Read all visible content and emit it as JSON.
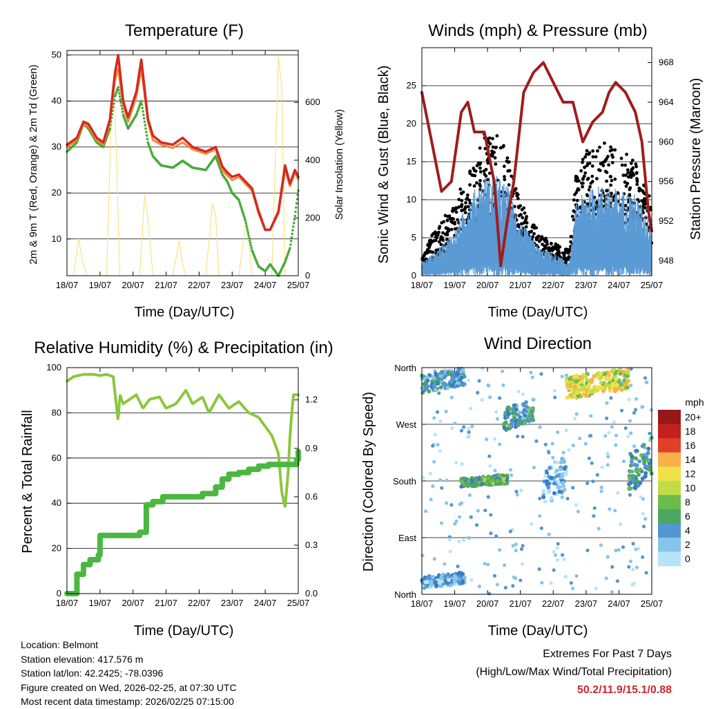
{
  "panels": {
    "temperature": {
      "title": "Temperature (F)",
      "ylabel_left": "2m & 9m T (Red, Orange) & 2m Td (Green)",
      "ylabel_right": "Solar Insolation (Yellow)",
      "xlabel": "Time (Day/UTC)"
    },
    "winds": {
      "title": "Winds (mph) & Pressure (mb)",
      "ylabel_left": "Sonic Wind & Gust (Blue, Black)",
      "ylabel_right": "Station Pressure (Maroon)",
      "xlabel": "Time (Day/UTC)"
    },
    "humidity": {
      "title": "Relative Humidity (%) & Precipitation (in)",
      "ylabel_left": "Percent & Total Rainfall",
      "xlabel": "Time (Day/UTC)"
    },
    "direction": {
      "title": "Wind Direction",
      "ylabel_left": "Direction (Colored By Speed)",
      "xlabel": "Time (Day/UTC)",
      "legend_title": "mph",
      "legend_labels": [
        "20+",
        "18",
        "16",
        "14",
        "12",
        "10",
        "8",
        "6",
        "4",
        "2",
        "0"
      ]
    }
  },
  "info": {
    "location": "Location: Belmont",
    "elevation": "Station elevation: 417.576 m",
    "latlon": "Station lat/lon: 42.2425; -78.0396",
    "created": "Figure created on Wed, 2026-02-25, at 07:30 UTC",
    "recent": "Most recent data timestamp: 2026/02/25 07:15:00"
  },
  "extremes": {
    "line1": "Extremes For Past 7 Days",
    "line2": "(High/Low/Max Wind/Total Precipitation)",
    "values": "50.2/11.9/15.1/0.88"
  },
  "colors": {
    "temp_2m": "#d42a20",
    "temp_9m": "#f08a38",
    "dewpoint": "#4aaa3c",
    "solar": "#f8e06a",
    "wind": "#5b9bd5",
    "gust": "#000000",
    "pressure": "#a01c1c",
    "rh": "#8cc63e",
    "precip": "#4ab840",
    "scale": [
      "#b8e4f8",
      "#86c4ec",
      "#5296d2",
      "#3c7cc0",
      "#4aa860",
      "#6cbc4c",
      "#c2dc48",
      "#f2e048",
      "#f8b04a",
      "#f07030",
      "#e04028",
      "#c42020",
      "#981818"
    ]
  },
  "chart_data": [
    {
      "type": "line",
      "title": "Temperature (F)",
      "xlabel": "Time (Day/UTC)",
      "ylabel": "2m & 9m T (Red, Orange) & 2m Td (Green)",
      "y2label": "Solar Insolation (Yellow)",
      "x_ticks": [
        "18/07",
        "19/07",
        "20/07",
        "21/07",
        "22/07",
        "23/07",
        "24/07",
        "25/07"
      ],
      "x_range": [
        0,
        7
      ],
      "ylim": [
        2,
        51
      ],
      "y_ticks": [
        10,
        20,
        30,
        40,
        50
      ],
      "y2lim": [
        0,
        780
      ],
      "y2_ticks": [
        0,
        200,
        400,
        600
      ],
      "series": [
        {
          "name": "2m T",
          "color": "#d42a20",
          "x": [
            0,
            0.3,
            0.5,
            0.65,
            0.9,
            1.1,
            1.3,
            1.45,
            1.55,
            1.7,
            1.85,
            2.1,
            2.25,
            2.45,
            2.6,
            2.85,
            3.2,
            3.5,
            3.8,
            4.2,
            4.5,
            4.7,
            4.85,
            5,
            5.2,
            5.4,
            5.6,
            5.8,
            6,
            6.15,
            6.4,
            6.6,
            6.75,
            6.9,
            7
          ],
          "y": [
            30.5,
            32,
            35.5,
            35,
            32,
            31,
            36,
            46,
            50,
            40,
            36.5,
            42,
            49,
            36,
            32.5,
            31,
            30.5,
            32,
            30,
            29,
            30,
            25.8,
            24.5,
            23.5,
            24,
            22.5,
            21,
            16,
            12,
            12,
            16,
            26,
            22,
            25,
            23.5
          ]
        },
        {
          "name": "9m T",
          "color": "#f08a38",
          "x": [
            0,
            0.3,
            0.5,
            0.65,
            0.9,
            1.1,
            1.3,
            1.45,
            1.55,
            1.7,
            1.85,
            2.1,
            2.25,
            2.45,
            2.6,
            2.85,
            3.2,
            3.5,
            3.8,
            4.2,
            4.5,
            4.7,
            4.85,
            5,
            5.2,
            5.4,
            5.6,
            5.8,
            6,
            6.15,
            6.4,
            6.6,
            6.75,
            6.9,
            7
          ],
          "y": [
            30,
            31.5,
            35,
            34.5,
            31.5,
            30.5,
            35.5,
            44.5,
            47,
            39,
            35.5,
            41,
            47,
            35.5,
            31.5,
            30.5,
            29.8,
            31,
            29.5,
            28.5,
            29.5,
            25,
            23.8,
            22.8,
            23.5,
            22,
            20.5,
            15.5,
            11.9,
            12,
            15.5,
            25,
            21.5,
            24.5,
            23
          ]
        },
        {
          "name": "2m Td",
          "color": "#4aaa3c",
          "x": [
            0,
            0.3,
            0.5,
            0.65,
            0.9,
            1.1,
            1.3,
            1.45,
            1.55,
            1.7,
            1.85,
            2.1,
            2.25,
            2.45,
            2.6,
            2.85,
            3.2,
            3.5,
            3.8,
            4.2,
            4.5,
            4.7,
            4.85,
            5,
            5.2,
            5.4,
            5.6,
            5.8,
            6,
            6.15,
            6.4,
            6.6,
            6.75,
            6.9,
            7
          ],
          "y": [
            29,
            31,
            35,
            34,
            31,
            30,
            34,
            41,
            43,
            37,
            34,
            37,
            40,
            31,
            28,
            26,
            25.5,
            27,
            25.5,
            25,
            28,
            24,
            22.5,
            20,
            18.5,
            14,
            7.5,
            4,
            3,
            4.5,
            2,
            5,
            8,
            15,
            20.5
          ]
        },
        {
          "name": "Solar Insolation",
          "color": "#f8e06a",
          "axis": "y2",
          "x": [
            0,
            0.2,
            0.35,
            0.45,
            0.6,
            0.8,
            1,
            1.2,
            1.35,
            1.45,
            1.6,
            1.8,
            2,
            2.2,
            2.35,
            2.45,
            2.6,
            2.8,
            3,
            3.2,
            3.4,
            3.5,
            3.6,
            3.8,
            4,
            4.2,
            4.4,
            4.5,
            4.6,
            4.8,
            5,
            5.2,
            5.4,
            5.5,
            5.6,
            5.8,
            6,
            6.2,
            6.4,
            6.5,
            6.6,
            6.8,
            7
          ],
          "y": [
            0,
            0,
            130,
            60,
            0,
            0,
            0,
            0,
            580,
            600,
            0,
            0,
            0,
            0,
            280,
            200,
            0,
            0,
            0,
            0,
            120,
            40,
            0,
            0,
            0,
            0,
            250,
            210,
            0,
            0,
            0,
            0,
            180,
            120,
            0,
            0,
            0,
            0,
            760,
            650,
            0,
            0,
            0
          ]
        }
      ]
    },
    {
      "type": "scatter",
      "title": "Winds (mph) & Pressure (mb)",
      "xlabel": "Time (Day/UTC)",
      "ylabel": "Sonic Wind & Gust (Blue, Black)",
      "y2label": "Station Pressure (Maroon)",
      "x_ticks": [
        "18/07",
        "19/07",
        "20/07",
        "21/07",
        "22/07",
        "23/07",
        "24/07",
        "25/07"
      ],
      "x_range": [
        0,
        7
      ],
      "ylim": [
        0,
        30
      ],
      "y_ticks": [
        0,
        5,
        10,
        15,
        20,
        25
      ],
      "y2lim": [
        946.5,
        969.5
      ],
      "y2_ticks": [
        948,
        952,
        956,
        960,
        964,
        968
      ],
      "series": [
        {
          "name": "Sonic Wind",
          "color": "#5b9bd5",
          "envelope_x": [
            0,
            0.5,
            1,
            1.5,
            1.9,
            2.3,
            2.6,
            3,
            3.6,
            4,
            4.5,
            4.7,
            5,
            5.5,
            6,
            6.5,
            7
          ],
          "envelope_y": [
            1.5,
            3,
            5,
            9,
            11,
            11,
            10,
            6,
            3,
            2.5,
            1.5,
            8,
            9.5,
            10,
            9.5,
            9,
            6
          ]
        },
        {
          "name": "Gust",
          "color": "#000000",
          "envelope_x": [
            0,
            0.5,
            1,
            1.5,
            1.9,
            2.3,
            2.6,
            3,
            3.6,
            4,
            4.5,
            4.7,
            5,
            5.5,
            6,
            6.5,
            7
          ],
          "envelope_y": [
            3,
            6,
            9,
            13,
            17,
            17,
            15,
            9,
            5,
            4,
            3,
            13,
            15,
            16,
            15,
            14,
            9
          ]
        },
        {
          "name": "Station Pressure",
          "color": "#a01c1c",
          "axis": "y2",
          "x": [
            0,
            0.3,
            0.6,
            0.9,
            1.2,
            1.4,
            1.6,
            1.9,
            2.2,
            2.4,
            2.6,
            2.8,
            3.1,
            3.4,
            3.7,
            4,
            4.3,
            4.6,
            4.9,
            5.2,
            5.5,
            5.7,
            5.9,
            6.2,
            6.5,
            6.7,
            6.9,
            7
          ],
          "y": [
            965,
            960,
            955,
            956,
            963,
            964,
            961,
            961,
            956,
            947.5,
            952,
            956,
            965,
            967,
            968,
            966,
            964,
            964,
            960,
            962,
            963,
            965,
            966,
            965,
            963,
            960,
            953,
            951
          ]
        }
      ]
    },
    {
      "type": "line",
      "title": "Relative Humidity (%) & Precipitation (in)",
      "xlabel": "Time (Day/UTC)",
      "ylabel": "Percent & Total Rainfall",
      "x_ticks": [
        "18/07",
        "19/07",
        "20/07",
        "21/07",
        "22/07",
        "23/07",
        "24/07",
        "25/07"
      ],
      "x_range": [
        0,
        7
      ],
      "ylim": [
        0,
        100
      ],
      "y_ticks": [
        0,
        20,
        40,
        60,
        80,
        100
      ],
      "y2lim": [
        0,
        1.4
      ],
      "y2_ticks": [
        0.0,
        0.3,
        0.6,
        0.9,
        1.2
      ],
      "series": [
        {
          "name": "Relative Humidity",
          "color": "#8cc63e",
          "x": [
            0,
            0.2,
            0.5,
            0.8,
            1,
            1.2,
            1.4,
            1.55,
            1.6,
            1.7,
            1.9,
            2.1,
            2.3,
            2.5,
            2.8,
            3,
            3.3,
            3.6,
            3.8,
            4.1,
            4.3,
            4.6,
            4.9,
            5.2,
            5.5,
            5.8,
            6,
            6.2,
            6.4,
            6.5,
            6.6,
            6.7,
            6.75,
            6.85,
            7
          ],
          "y": [
            94,
            96,
            97,
            97,
            96.5,
            97,
            96,
            76,
            88,
            84,
            86,
            88,
            82,
            86,
            87,
            82,
            84,
            90,
            84,
            87,
            80,
            88,
            82,
            85,
            80,
            78,
            74,
            70,
            62,
            45,
            38,
            55,
            70,
            88,
            88
          ]
        },
        {
          "name": "Total Precipitation",
          "color": "#4ab840",
          "axis": "y2",
          "x": [
            0,
            0.15,
            0.3,
            0.5,
            0.7,
            0.95,
            1.0,
            1.5,
            1.9,
            2.2,
            2.4,
            2.6,
            2.9,
            3.3,
            3.7,
            4.1,
            4.5,
            4.7,
            4.9,
            5.2,
            5.5,
            5.8,
            6.1,
            6.4,
            6.6,
            6.8,
            6.95,
            7
          ],
          "y": [
            0,
            0,
            0.12,
            0.18,
            0.21,
            0.24,
            0.36,
            0.36,
            0.36,
            0.38,
            0.55,
            0.57,
            0.6,
            0.6,
            0.6,
            0.62,
            0.66,
            0.71,
            0.74,
            0.75,
            0.77,
            0.79,
            0.8,
            0.8,
            0.8,
            0.8,
            0.83,
            0.88
          ]
        }
      ]
    },
    {
      "type": "scatter",
      "title": "Wind Direction",
      "xlabel": "Time (Day/UTC)",
      "ylabel": "Direction (Colored By Speed)",
      "x_ticks": [
        "18/07",
        "19/07",
        "20/07",
        "21/07",
        "22/07",
        "23/07",
        "24/07",
        "25/07"
      ],
      "x_range": [
        0,
        7
      ],
      "y_ticks": [
        "North",
        "East",
        "South",
        "West",
        "North"
      ],
      "ylim": [
        0,
        360
      ],
      "colorbar": {
        "label": "mph",
        "ticks": [
          "20+",
          "18",
          "16",
          "14",
          "12",
          "10",
          "8",
          "6",
          "4",
          "2",
          "0"
        ]
      },
      "clusters": [
        {
          "x_start": 0,
          "x_end": 1.3,
          "dir_start": 10,
          "dir_end": 35,
          "speed": 3
        },
        {
          "x_start": 0,
          "x_end": 1.3,
          "dir_start": 320,
          "dir_end": 360,
          "speed": 4
        },
        {
          "x_start": 1.2,
          "x_end": 2.6,
          "dir_start": 170,
          "dir_end": 190,
          "speed": 7
        },
        {
          "x_start": 2.5,
          "x_end": 3.4,
          "dir_start": 260,
          "dir_end": 310,
          "speed": 5
        },
        {
          "x_start": 3.7,
          "x_end": 4.4,
          "dir_start": 140,
          "dir_end": 220,
          "speed": 2
        },
        {
          "x_start": 4.4,
          "x_end": 6.3,
          "dir_start": 310,
          "dir_end": 360,
          "speed": 11
        },
        {
          "x_start": 6.3,
          "x_end": 7,
          "dir_start": 160,
          "dir_end": 250,
          "speed": 6
        }
      ]
    }
  ]
}
